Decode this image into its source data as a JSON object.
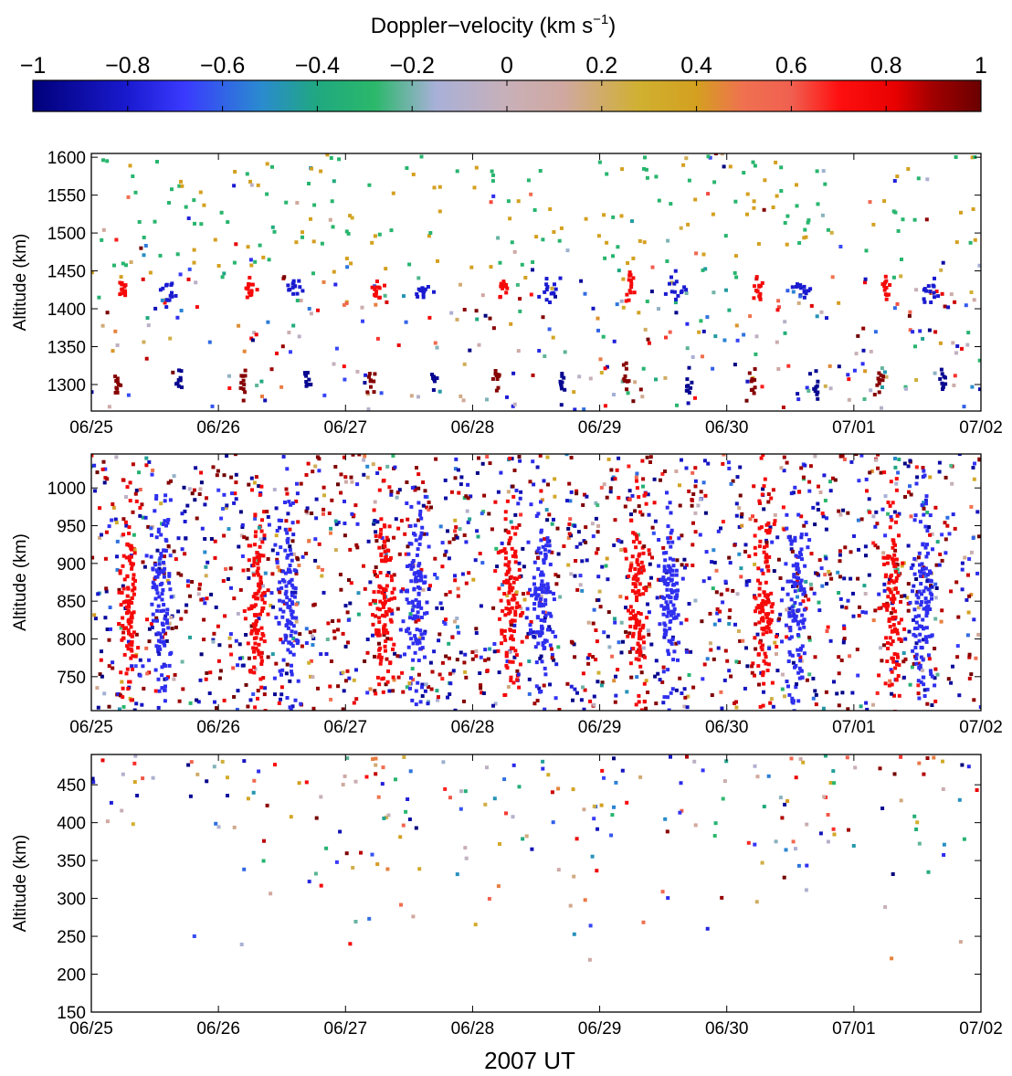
{
  "colorbar": {
    "title": "Doppler−velocity (km s",
    "title_sup": "−1",
    "title_close": ")",
    "range": [
      -1,
      1
    ],
    "ticks": [
      {
        "v": -1,
        "label": "−1"
      },
      {
        "v": -0.8,
        "label": "−0.8"
      },
      {
        "v": -0.6,
        "label": "−0.6"
      },
      {
        "v": -0.4,
        "label": "−0.4"
      },
      {
        "v": -0.2,
        "label": "−0.2"
      },
      {
        "v": 0,
        "label": "0"
      },
      {
        "v": 0.2,
        "label": "0.2"
      },
      {
        "v": 0.4,
        "label": "0.4"
      },
      {
        "v": 0.6,
        "label": "0.6"
      },
      {
        "v": 0.8,
        "label": "0.8"
      },
      {
        "v": 1,
        "label": "1"
      }
    ],
    "stops": [
      {
        "v": -1.0,
        "color": "#00007a"
      },
      {
        "v": -0.8,
        "color": "#1a1ad0"
      },
      {
        "v": -0.68,
        "color": "#3a3aff"
      },
      {
        "v": -0.52,
        "color": "#2a8ad0"
      },
      {
        "v": -0.4,
        "color": "#20a880"
      },
      {
        "v": -0.28,
        "color": "#2ab86a"
      },
      {
        "v": -0.15,
        "color": "#a8b0d8"
      },
      {
        "v": 0.0,
        "color": "#c8b0b8"
      },
      {
        "v": 0.12,
        "color": "#d0a8a0"
      },
      {
        "v": 0.28,
        "color": "#d0b030"
      },
      {
        "v": 0.4,
        "color": "#d4a020"
      },
      {
        "v": 0.5,
        "color": "#f07050"
      },
      {
        "v": 0.6,
        "color": "#f06050"
      },
      {
        "v": 0.7,
        "color": "#ff1010"
      },
      {
        "v": 0.82,
        "color": "#e80000"
      },
      {
        "v": 0.9,
        "color": "#a00000"
      },
      {
        "v": 1.0,
        "color": "#6a0000"
      }
    ]
  },
  "xaxis": {
    "ticks": [
      "06/25",
      "06/26",
      "06/27",
      "06/28",
      "06/29",
      "06/30",
      "07/01",
      "07/02"
    ],
    "label": "2007 UT"
  },
  "chart_data": [
    {
      "type": "scatter",
      "ylabel": "Altitude (km)",
      "ylim": [
        1265,
        1605
      ],
      "yticks": [
        1300,
        1350,
        1400,
        1450,
        1500,
        1550,
        1600
      ],
      "xlim_days": [
        0,
        7
      ],
      "clusters": [
        {
          "x": [
            0.1,
            2.2
          ],
          "y": [
            1300,
            1310
          ],
          "v": -0.95
        },
        {
          "x": [
            1.25,
            1.3
          ],
          "y": [
            1420,
            1430
          ],
          "v": 0.75
        },
        {
          "x": [
            2.0,
            2.05
          ],
          "y": [
            1420,
            1430
          ],
          "v": -0.9
        },
        {
          "x": [
            2.8,
            2.85
          ],
          "y": [
            1420,
            1430
          ],
          "v": 0.85
        }
      ]
    },
    {
      "type": "scatter",
      "ylabel": "Altitude (km)",
      "ylim": [
        705,
        1045
      ],
      "yticks": [
        750,
        800,
        850,
        900,
        950,
        1000
      ],
      "xlim_days": [
        0,
        7
      ]
    },
    {
      "type": "scatter",
      "ylabel": "Altitude (km)",
      "ylim": [
        150,
        490
      ],
      "yticks": [
        150,
        200,
        250,
        300,
        350,
        400,
        450
      ],
      "xlim_days": [
        0,
        7
      ]
    }
  ]
}
